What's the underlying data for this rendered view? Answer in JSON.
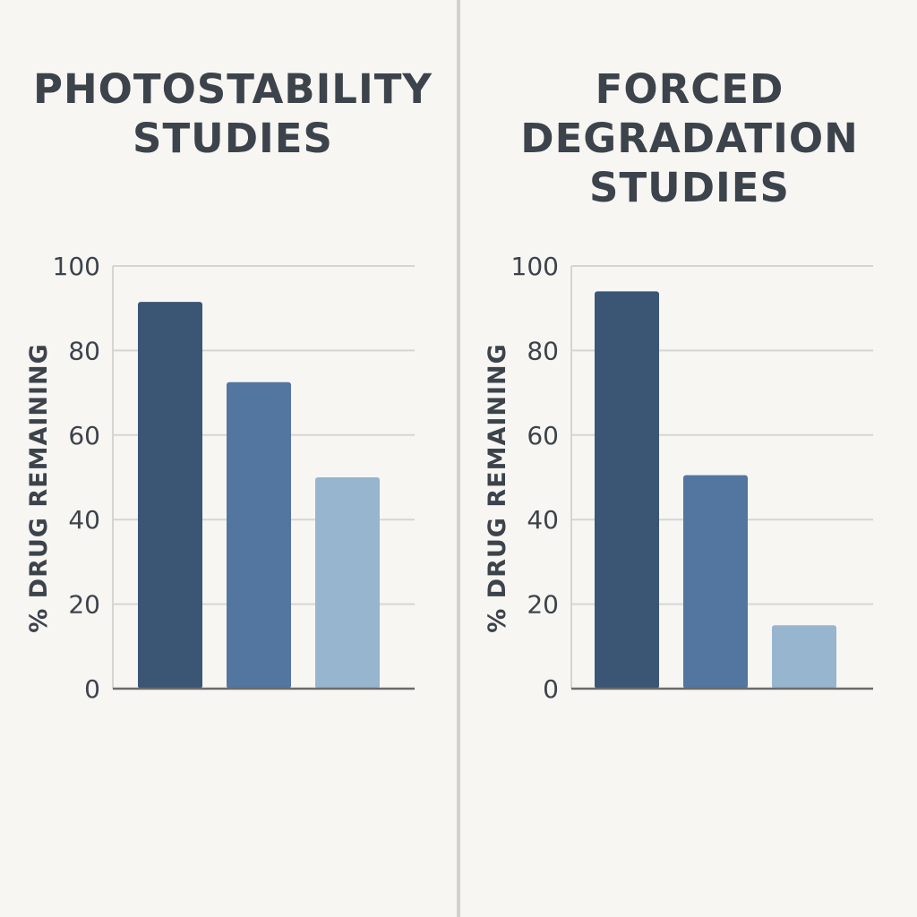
{
  "colors": {
    "background": "#f7f6f3",
    "divider": "#d2d1ce",
    "text": "#3d434b",
    "grid": "#d6d5d2",
    "axis": "#6b6b6b"
  },
  "chart_data": [
    {
      "type": "bar",
      "title": [
        "PHOTOSTABILITY",
        "STUDIES"
      ],
      "ylabel": "% DRUG REMAINING",
      "xlabel": "",
      "ylim": [
        0,
        100
      ],
      "yticks": [
        0,
        20,
        40,
        60,
        80,
        100
      ],
      "grid": true,
      "values": [
        91.5,
        72.5,
        50
      ],
      "bar_colors": [
        "#3b5575",
        "#52769f",
        "#97b5cf"
      ]
    },
    {
      "type": "bar",
      "title": [
        "FORCED",
        "DEGRADATION",
        "STUDIES"
      ],
      "ylabel": "% DRUG REMAINING",
      "xlabel": "",
      "ylim": [
        0,
        100
      ],
      "yticks": [
        0,
        20,
        40,
        60,
        80,
        100
      ],
      "grid": true,
      "values": [
        94,
        50.5,
        15
      ],
      "bar_colors": [
        "#3b5575",
        "#52769f",
        "#97b5cf"
      ]
    }
  ]
}
